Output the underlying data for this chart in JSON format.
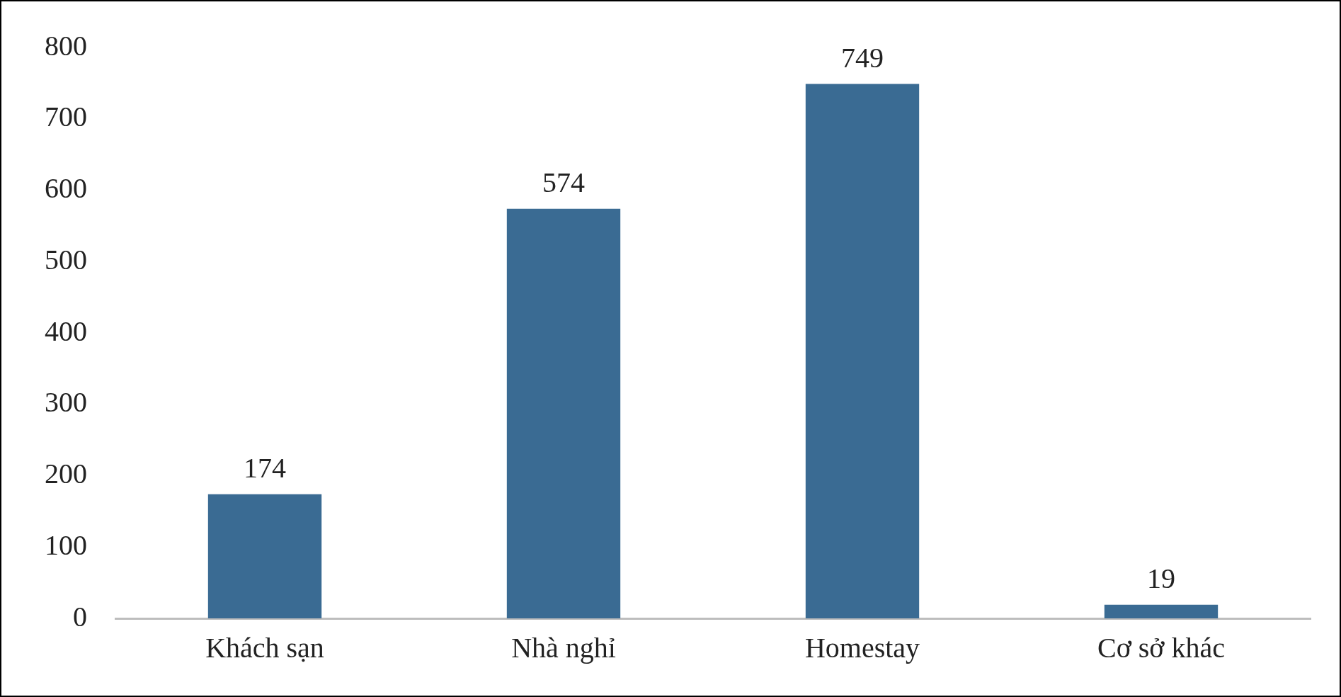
{
  "chart_data": {
    "type": "bar",
    "categories": [
      "Khách sạn",
      "Nhà nghỉ",
      "Homestay",
      "Cơ sở khác"
    ],
    "values": [
      174,
      574,
      749,
      19
    ],
    "color": "#3a6b93",
    "ylim": [
      0,
      800
    ],
    "yticks": [
      0,
      100,
      200,
      300,
      400,
      500,
      600,
      700,
      800
    ],
    "grid": false,
    "data_labels": true,
    "legend": false
  }
}
